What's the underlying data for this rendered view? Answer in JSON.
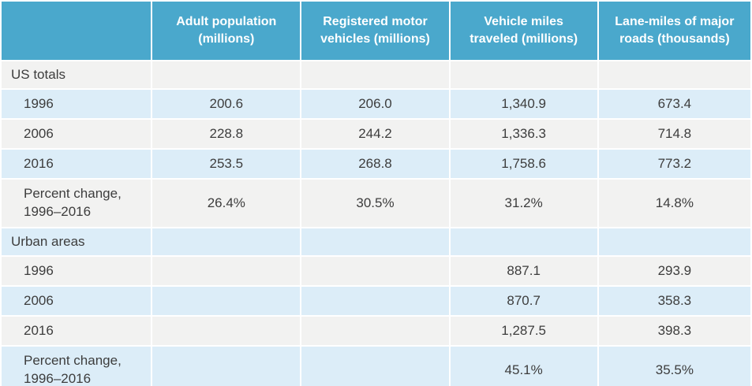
{
  "colors": {
    "header_bg": "#4aa8cc",
    "header_text": "#ffffff",
    "row_gray": "#f2f2f1",
    "row_blue": "#dcedf8",
    "body_text": "#3d3d3d"
  },
  "table": {
    "columns": [
      "",
      "Adult population (millions)",
      "Registered motor vehicles (millions)",
      "Vehicle miles traveled (millions)",
      "Lane-miles of major roads (thousands)"
    ],
    "rows": [
      {
        "label": "US totals",
        "values": [
          "",
          "",
          "",
          ""
        ]
      },
      {
        "label": "1996",
        "values": [
          "200.6",
          "206.0",
          "1,340.9",
          "673.4"
        ]
      },
      {
        "label": "2006",
        "values": [
          "228.8",
          "244.2",
          "1,336.3",
          "714.8"
        ]
      },
      {
        "label": "2016",
        "values": [
          "253.5",
          "268.8",
          "1,758.6",
          "773.2"
        ]
      },
      {
        "label": "Percent change,\n1996–2016",
        "values": [
          "26.4%",
          "30.5%",
          "31.2%",
          "14.8%"
        ]
      },
      {
        "label": "Urban areas",
        "values": [
          "",
          "",
          "",
          ""
        ]
      },
      {
        "label": "1996",
        "values": [
          "",
          "",
          "887.1",
          "293.9"
        ]
      },
      {
        "label": "2006",
        "values": [
          "",
          "",
          "870.7",
          "358.3"
        ]
      },
      {
        "label": "2016",
        "values": [
          "",
          "",
          "1,287.5",
          "398.3"
        ]
      },
      {
        "label": "Percent change,\n1996–2016",
        "values": [
          "",
          "",
          "45.1%",
          "35.5%"
        ]
      }
    ]
  }
}
